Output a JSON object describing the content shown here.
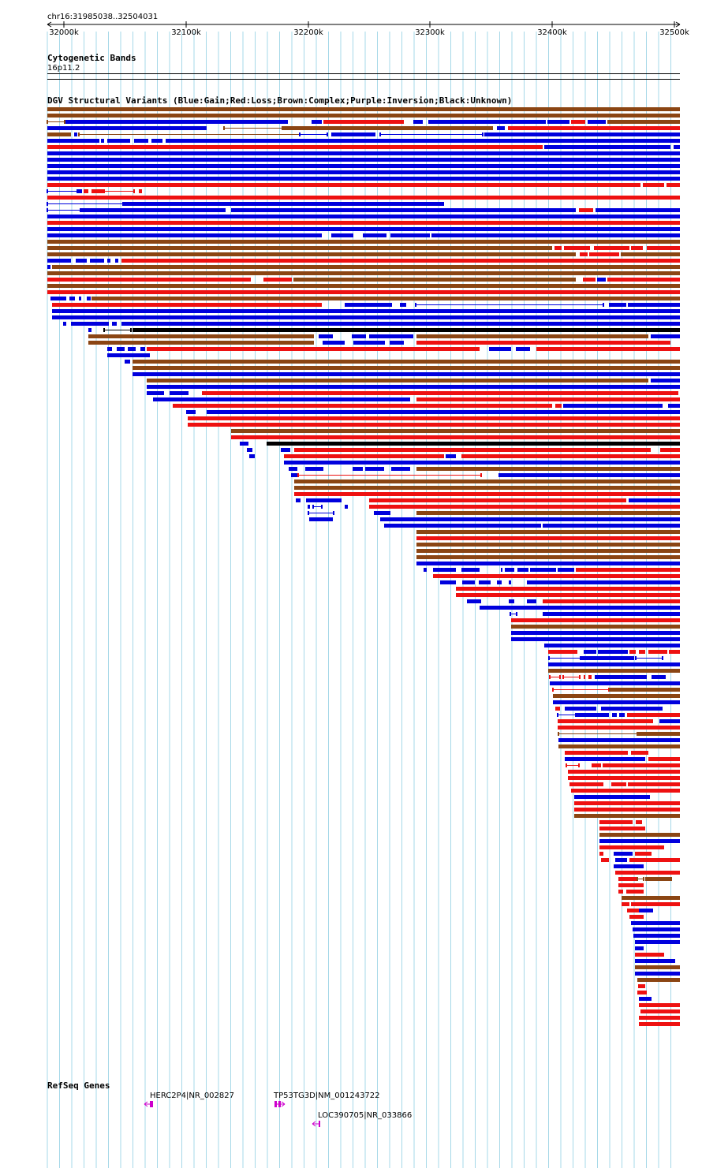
{
  "header": {
    "region": "chr16:31985038..32504031"
  },
  "ruler": {
    "ticks": [
      "32000k",
      "32100k",
      "32200k",
      "32300k",
      "32400k",
      "32500k"
    ]
  },
  "cytoband": {
    "title": "Cytogenetic Bands",
    "band": "16p11.2"
  },
  "dgv": {
    "title": "DGV Structural Variants (Blue:Gain;Red:Loss;Brown:Complex;Purple:Inversion;Black:Unknown)"
  },
  "refseq": {
    "title": "RefSeq Genes",
    "genes": [
      "HERC2P4|NR_002827",
      "TP53TG3D|NM_001243722",
      "LOC390705|NR_033866"
    ]
  },
  "colors": {
    "gain": "#0000dd",
    "loss": "#ee1111",
    "complex": "#8b4513",
    "inversion": "#800080",
    "unknown": "#000000",
    "gene": "#cc00cc",
    "grid": "#a6d8e8"
  }
}
